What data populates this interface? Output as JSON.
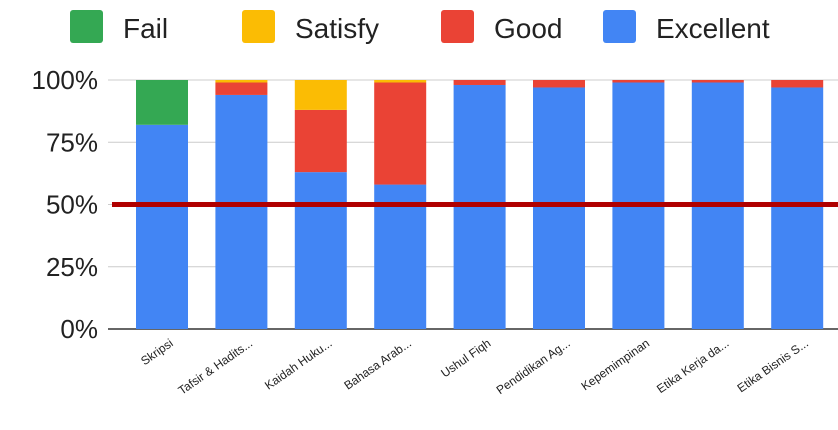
{
  "chart_data": {
    "type": "bar",
    "stacked": "percent",
    "legend_position": "top",
    "grid": true,
    "ylim": [
      0,
      100
    ],
    "ytick_values": [
      0,
      25,
      50,
      75,
      100
    ],
    "ytick_labels": [
      "0%",
      "25%",
      "50%",
      "75%",
      "100%"
    ],
    "categories": [
      "Skripsi",
      "Tafsir & Hadits...",
      "Kaidah Huku...",
      "Bahasa Arab...",
      "Ushul Fiqh",
      "Pendidikan Ag...",
      "Kepemimpinan",
      "Etika Kerja da...",
      "Etika Bisnis S..."
    ],
    "series": [
      {
        "name": "Excellent",
        "color": "#4285f4",
        "values": [
          82,
          94,
          63,
          58,
          98,
          97,
          99,
          99,
          97
        ]
      },
      {
        "name": "Good",
        "color": "#ea4335",
        "values": [
          0,
          5,
          25,
          41,
          2,
          3,
          1,
          1,
          3
        ]
      },
      {
        "name": "Satisfy",
        "color": "#fbbc04",
        "values": [
          0,
          1,
          12,
          1,
          0,
          0,
          0,
          0,
          0
        ]
      },
      {
        "name": "Fail",
        "color": "#34a853",
        "values": [
          18,
          0,
          0,
          0,
          0,
          0,
          0,
          0,
          0
        ]
      }
    ],
    "legend_order": [
      "Fail",
      "Satisfy",
      "Good",
      "Excellent"
    ],
    "reference_line": {
      "value": 50,
      "color": "#b00000"
    }
  }
}
